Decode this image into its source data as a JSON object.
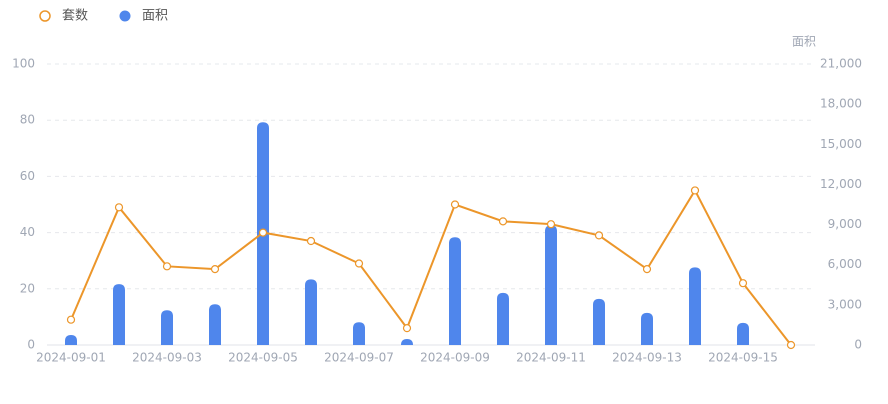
{
  "chart_data": {
    "type": "combo",
    "categories": [
      "2024-09-01",
      null,
      "2024-09-03",
      null,
      "2024-09-05",
      null,
      "2024-09-07",
      null,
      "2024-09-09",
      null,
      "2024-09-11",
      null,
      "2024-09-13",
      null,
      "2024-09-15",
      null
    ],
    "series": [
      {
        "name": "套数",
        "type": "line",
        "axis": "y",
        "color": "#ec962a",
        "values": [
          9,
          49,
          28,
          27,
          40,
          37,
          29,
          6,
          50,
          44,
          43,
          39,
          27,
          55,
          22,
          0
        ]
      },
      {
        "name": "面积",
        "type": "bar",
        "axis": "y2",
        "color": "#4f86ec",
        "values": [
          750,
          4550,
          2600,
          3050,
          16650,
          4900,
          1700,
          450,
          8050,
          3900,
          8950,
          3450,
          2400,
          5800,
          1650,
          0
        ]
      }
    ],
    "ylim": [
      0,
      100
    ],
    "yticks": [
      0,
      20,
      40,
      60,
      80,
      100
    ],
    "y2label": "面积",
    "y2lim": [
      0,
      21000
    ],
    "y2ticks": [
      0,
      {
        "value": 3000,
        "label": "3,000"
      },
      {
        "value": 6000,
        "label": "6,000"
      },
      {
        "value": 9000,
        "label": "9,000"
      },
      {
        "value": 12000,
        "label": "12,000"
      },
      {
        "value": 15000,
        "label": "15,000"
      },
      {
        "value": 18000,
        "label": "18,000"
      },
      {
        "value": 21000,
        "label": "21,000"
      }
    ],
    "grid": true,
    "legend": "top-left"
  }
}
